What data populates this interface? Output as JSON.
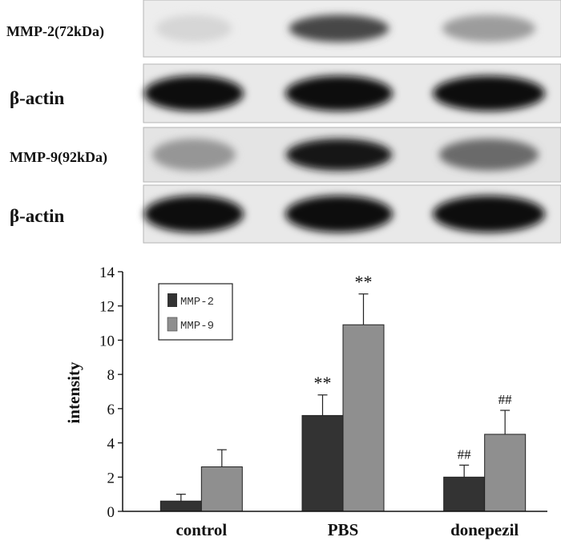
{
  "blot": {
    "rows": [
      {
        "label": "MMP-2(72kDa)",
        "intensities": [
          0.05,
          0.72,
          0.32
        ]
      },
      {
        "label": "β-actin",
        "intensities": [
          1.0,
          1.0,
          1.0
        ]
      },
      {
        "label": "MMP-9(92kDa)",
        "intensities": [
          0.35,
          0.95,
          0.55
        ]
      },
      {
        "label": "β-actin",
        "intensities": [
          1.0,
          1.0,
          1.0
        ]
      }
    ]
  },
  "chart_data": {
    "type": "bar",
    "categories": [
      "control",
      "PBS",
      "donepezil"
    ],
    "series": [
      {
        "name": "MMP-2",
        "color": "#333333",
        "values": [
          0.6,
          5.6,
          2.0
        ],
        "errors": [
          0.4,
          1.2,
          0.7
        ],
        "annotations": [
          "",
          "**",
          "##"
        ]
      },
      {
        "name": "MMP-9",
        "color": "#8f8f8f",
        "values": [
          2.6,
          10.9,
          4.5
        ],
        "errors": [
          1.0,
          1.8,
          1.4
        ],
        "annotations": [
          "",
          "**",
          "##"
        ]
      }
    ],
    "xlabel": "",
    "ylabel": "intensity",
    "ylim": [
      0,
      14
    ],
    "yticks": [
      0,
      2,
      4,
      6,
      8,
      10,
      12,
      14
    ],
    "legend": "top-left",
    "grid": false
  }
}
